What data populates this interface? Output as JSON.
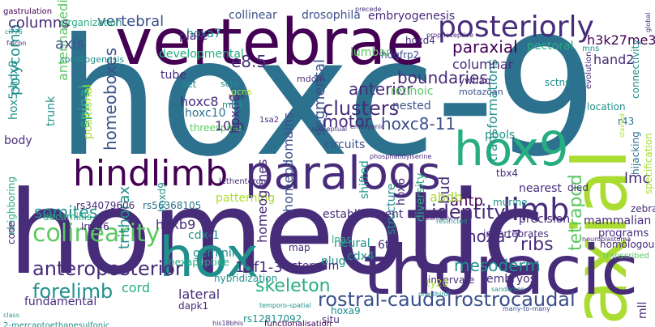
{
  "palette": {
    "dark_purple": "#440154",
    "indigo": "#472c7a",
    "blue_purple": "#3b518b",
    "steel_blue": "#2c718e",
    "teal": "#21908d",
    "green_teal": "#27ad81",
    "green": "#5cc863",
    "yellow_green": "#aadc32",
    "yellow": "#fde725"
  },
  "words": [
    "hoxc-9",
    "homeotic",
    "vertebrae",
    "axial",
    "thoracic",
    "hox9",
    "paralogs",
    "hindlimb",
    "hox",
    "posteriorly",
    "colinearity",
    "limb",
    "anteroposterior",
    "forelimb",
    "skeleton",
    "rostral-caudal",
    "rostrocaudal",
    "identity",
    "clusters",
    "hoxc8-11",
    "homeoboxes",
    "paraxial",
    "segmental",
    "motor",
    "boundaries",
    "anterior",
    "transformations",
    "tetrapod",
    "ribs",
    "hoxa-7",
    "mesoderm",
    "somites",
    "trithorax",
    "spinal",
    "antennapedia",
    "polycomb",
    "vertebral",
    "columns",
    "axis",
    "hox5-hox8",
    "columnar",
    "e8.5",
    "hoxa7",
    "collinear",
    "drosophila",
    "embryogenesis",
    "h3k27me3",
    "hand2",
    "pectoral",
    "lumbar",
    "hoxd4",
    "ywhaq",
    "motazoan",
    "hdgfrp2",
    "nested",
    "retinoic",
    "circuits",
    "pools",
    "antp",
    "hoxc8",
    "hoxc10",
    "threespine",
    "hoxd8",
    "developmental",
    "homeodomains",
    "patterning",
    "hoxb9",
    "bud",
    "abdb",
    "lmc",
    "6th",
    "mammalian",
    "programs",
    "structure",
    "shifted",
    "diversity",
    "homeogenes",
    "hexapeptide",
    "geminin",
    "cdx-1",
    "cord",
    "15f1-3",
    "lateral",
    "dapk1",
    "fundamental",
    "homologous",
    "embryos",
    "innervate",
    "rs34079606",
    "rs56368105",
    "decamillis",
    "hox6",
    "hoxd9",
    "plate",
    "tube",
    "organization",
    "somitogenesis",
    "10th",
    "m54",
    "set",
    "positional",
    "trunk",
    "body",
    "neighboring",
    "code",
    "lrrc46",
    "neural",
    "cdx4",
    "plug",
    "lnas",
    "sternum",
    "map",
    "hybridization",
    "situ",
    "rs12817092",
    "establishment",
    "mll",
    "hoxa9",
    "precision",
    "invertebrates",
    "nearest",
    "died",
    "tbx4",
    "murine",
    "location",
    "r43",
    "connectivity",
    "hijacking",
    "specification",
    "zebrafish",
    "evolution",
    "mns",
    "sctns",
    "sctn",
    "gcns",
    "mdom",
    "ty20",
    "1sa2",
    "lethenteron",
    "gastrulation",
    "ci776",
    "falcon",
    "embryonic",
    "transcribed",
    "one-third",
    "beenfully",
    "restricted",
    "2-mercaptoethanesulfonic",
    "class",
    "functionalisation",
    "his18bhis",
    "temporo-spatial",
    "sanderson",
    "many-to-many",
    "proprioceptive",
    "precede",
    "phosphatidylserine",
    "global",
    "stained",
    "neuroblastoma",
    "conceptual",
    "hoxb"
  ]
}
